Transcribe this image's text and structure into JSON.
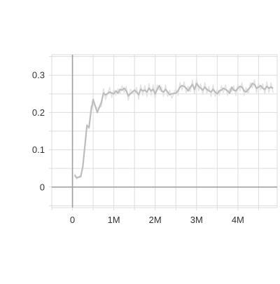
{
  "chart_data": {
    "type": "line",
    "title": "",
    "xlabel": "",
    "ylabel": "",
    "xlim": [
      -0.5,
      4.95
    ],
    "ylim": [
      -0.055,
      0.355
    ],
    "grid": true,
    "x_ticks": [
      {
        "value": 0,
        "label": "0"
      },
      {
        "value": 1,
        "label": "1M"
      },
      {
        "value": 2,
        "label": "2M"
      },
      {
        "value": 3,
        "label": "3M"
      },
      {
        "value": 4,
        "label": "4M"
      }
    ],
    "y_ticks": [
      {
        "value": 0,
        "label": "0"
      },
      {
        "value": 0.1,
        "label": "0.1"
      },
      {
        "value": 0.2,
        "label": "0.2"
      },
      {
        "value": 0.3,
        "label": "0.3"
      }
    ],
    "colors": {
      "smoothed": "#bdbdbd",
      "raw": "#e4e4e4",
      "grid": "#dddddd",
      "axis": "#9e9e9e"
    },
    "series": [
      {
        "x": [
          0.05,
          0.1,
          0.2,
          0.25,
          0.35,
          0.4,
          0.45,
          0.5,
          0.6,
          0.7,
          0.75,
          0.8,
          0.9,
          0.95,
          1.0,
          1.05,
          1.1,
          1.15,
          1.2,
          1.25,
          1.3,
          1.35,
          1.4,
          1.5,
          1.55,
          1.6,
          1.65,
          1.7,
          1.75,
          1.8,
          1.85,
          1.9,
          1.95,
          2.0,
          2.05,
          2.1,
          2.15,
          2.2,
          2.25,
          2.3,
          2.35,
          2.4,
          2.5,
          2.55,
          2.6,
          2.65,
          2.7,
          2.75,
          2.8,
          2.85,
          2.9,
          2.95,
          3.0,
          3.05,
          3.1,
          3.15,
          3.2,
          3.25,
          3.3,
          3.35,
          3.4,
          3.45,
          3.5,
          3.55,
          3.6,
          3.65,
          3.7,
          3.75,
          3.8,
          3.85,
          3.9,
          3.95,
          4.0,
          4.05,
          4.1,
          4.15,
          4.2,
          4.25,
          4.3,
          4.35,
          4.4,
          4.45,
          4.5,
          4.55,
          4.6,
          4.65,
          4.7,
          4.75,
          4.8,
          4.85
        ],
        "values": [
          0.032,
          0.025,
          0.028,
          0.055,
          0.165,
          0.16,
          0.205,
          0.235,
          0.2,
          0.228,
          0.252,
          0.247,
          0.255,
          0.252,
          0.25,
          0.258,
          0.252,
          0.262,
          0.26,
          0.265,
          0.258,
          0.245,
          0.25,
          0.26,
          0.255,
          0.248,
          0.262,
          0.258,
          0.26,
          0.255,
          0.265,
          0.258,
          0.262,
          0.25,
          0.262,
          0.272,
          0.258,
          0.255,
          0.262,
          0.255,
          0.248,
          0.25,
          0.252,
          0.258,
          0.268,
          0.272,
          0.27,
          0.265,
          0.258,
          0.268,
          0.275,
          0.262,
          0.278,
          0.27,
          0.265,
          0.26,
          0.268,
          0.262,
          0.258,
          0.255,
          0.262,
          0.255,
          0.25,
          0.258,
          0.26,
          0.265,
          0.262,
          0.258,
          0.252,
          0.268,
          0.26,
          0.258,
          0.265,
          0.27,
          0.268,
          0.258,
          0.255,
          0.262,
          0.268,
          0.278,
          0.275,
          0.265,
          0.268,
          0.272,
          0.265,
          0.262,
          0.27,
          0.265,
          0.268,
          0.265
        ]
      }
    ]
  }
}
